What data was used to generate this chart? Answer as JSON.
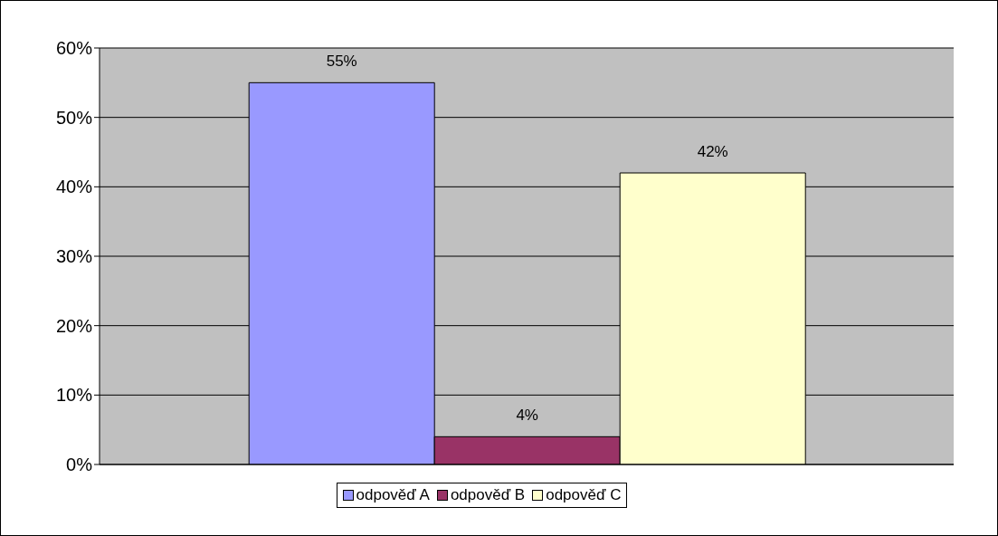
{
  "chart_data": {
    "type": "bar",
    "categories": [
      null
    ],
    "series": [
      {
        "name": "odpověď A",
        "color": "#9999ff",
        "values": [
          55
        ],
        "value_labels": [
          "55%"
        ]
      },
      {
        "name": "odpověď B",
        "color": "#993366",
        "values": [
          4
        ],
        "value_labels": [
          "4%"
        ]
      },
      {
        "name": "odpověď C",
        "color": "#ffffcc",
        "values": [
          42
        ],
        "value_labels": [
          "42%"
        ]
      }
    ],
    "ylim": [
      0,
      60
    ],
    "yticks": [
      {
        "value": 0,
        "label": "0%"
      },
      {
        "value": 10,
        "label": "10%"
      },
      {
        "value": 20,
        "label": "20%"
      },
      {
        "value": 30,
        "label": "30%"
      },
      {
        "value": 40,
        "label": "40%"
      },
      {
        "value": 50,
        "label": "50%"
      },
      {
        "value": 60,
        "label": "60%"
      }
    ],
    "grid": "y",
    "legend": "bottom"
  }
}
